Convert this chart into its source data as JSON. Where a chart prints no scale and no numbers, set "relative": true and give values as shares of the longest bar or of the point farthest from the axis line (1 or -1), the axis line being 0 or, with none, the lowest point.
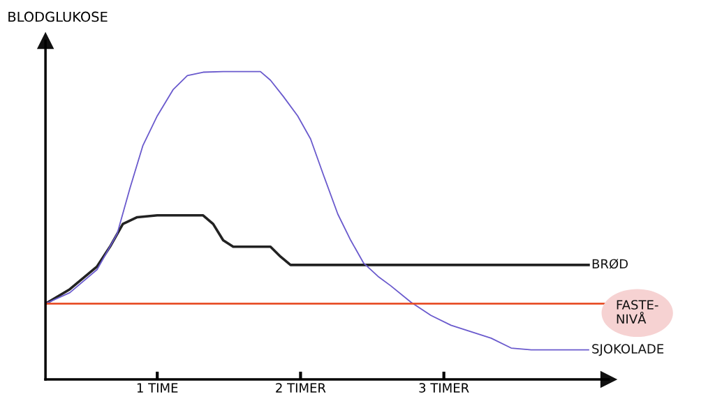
{
  "chart_data": {
    "type": "line",
    "relative": true,
    "ylabel": "BLODGLUKOSE",
    "xlim": [
      0.22,
      4.15
    ],
    "xticks": [
      {
        "value": 1,
        "label": "1 TIME"
      },
      {
        "value": 2,
        "label": "2 TIMER"
      },
      {
        "value": 3,
        "label": "3 TIMER"
      }
    ],
    "series": [
      {
        "name": "BRØD",
        "color": "#222222",
        "x": [
          0.22,
          0.39,
          0.58,
          0.67,
          0.76,
          0.86,
          1.0,
          1.32,
          1.39,
          1.46,
          1.53,
          1.79,
          1.86,
          1.93,
          2.26,
          4.01
        ],
        "values": [
          0.246,
          0.293,
          0.367,
          0.431,
          0.505,
          0.527,
          0.533,
          0.533,
          0.505,
          0.452,
          0.431,
          0.431,
          0.399,
          0.372,
          0.372,
          0.372
        ]
      },
      {
        "name": "SJOKOLADE",
        "color": "#6a5acd",
        "x": [
          0.22,
          0.39,
          0.58,
          0.72,
          0.81,
          0.9,
          1.0,
          1.11,
          1.21,
          1.32,
          1.46,
          1.72,
          1.79,
          1.88,
          1.98,
          2.07,
          2.16,
          2.26,
          2.35,
          2.44,
          2.54,
          2.63,
          2.77,
          2.91,
          3.05,
          3.19,
          3.33,
          3.47,
          3.61,
          4.01
        ],
        "values": [
          0.246,
          0.282,
          0.357,
          0.473,
          0.622,
          0.76,
          0.856,
          0.941,
          0.987,
          0.998,
          1.0,
          1.0,
          0.972,
          0.919,
          0.856,
          0.781,
          0.664,
          0.537,
          0.452,
          0.378,
          0.335,
          0.304,
          0.251,
          0.208,
          0.176,
          0.155,
          0.134,
          0.102,
          0.096,
          0.096
        ]
      }
    ],
    "ref_lines": [
      {
        "axis": "y",
        "value": 0.246,
        "label": "FASTE-\nNIVÅ",
        "color": "#e8502a"
      }
    ],
    "legend": false,
    "grid": false
  }
}
